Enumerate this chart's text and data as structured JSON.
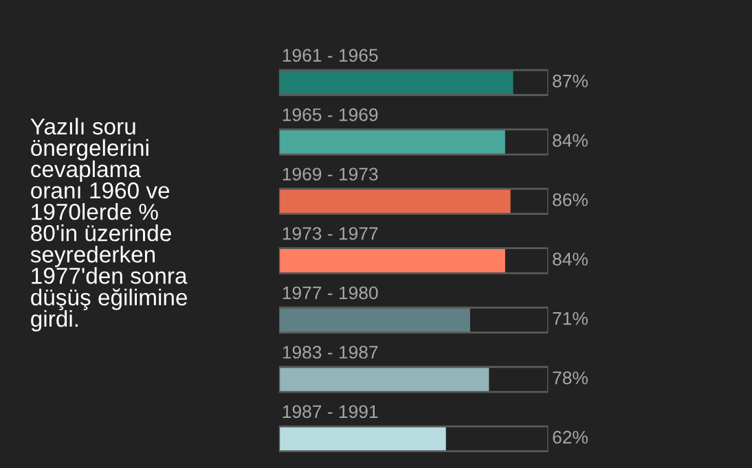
{
  "chart_data": {
    "type": "bar",
    "orientation": "horizontal",
    "categories": [
      "1961 - 1965",
      "1965 - 1969",
      "1969 - 1973",
      "1973 - 1977",
      "1977 - 1980",
      "1983 - 1987",
      "1987 - 1991"
    ],
    "values": [
      87,
      84,
      86,
      84,
      71,
      78,
      62
    ],
    "colors": [
      "#1f7f72",
      "#4aa79c",
      "#e66c4e",
      "#ff7f62",
      "#5f8085",
      "#93b5b8",
      "#b8dde0"
    ],
    "value_labels": [
      "87%",
      "84%",
      "86%",
      "84%",
      "71%",
      "78%",
      "62%"
    ],
    "xlim": [
      0,
      100
    ],
    "annotations": [
      "Yazılı soru\nönergelerini\ncevaplama\noranı 1960 ve\n1970lerde %\n80'in üzerinde\nseyrederken\n1977'den sonra\ndüşüş eğilimine\ngirdi."
    ]
  }
}
